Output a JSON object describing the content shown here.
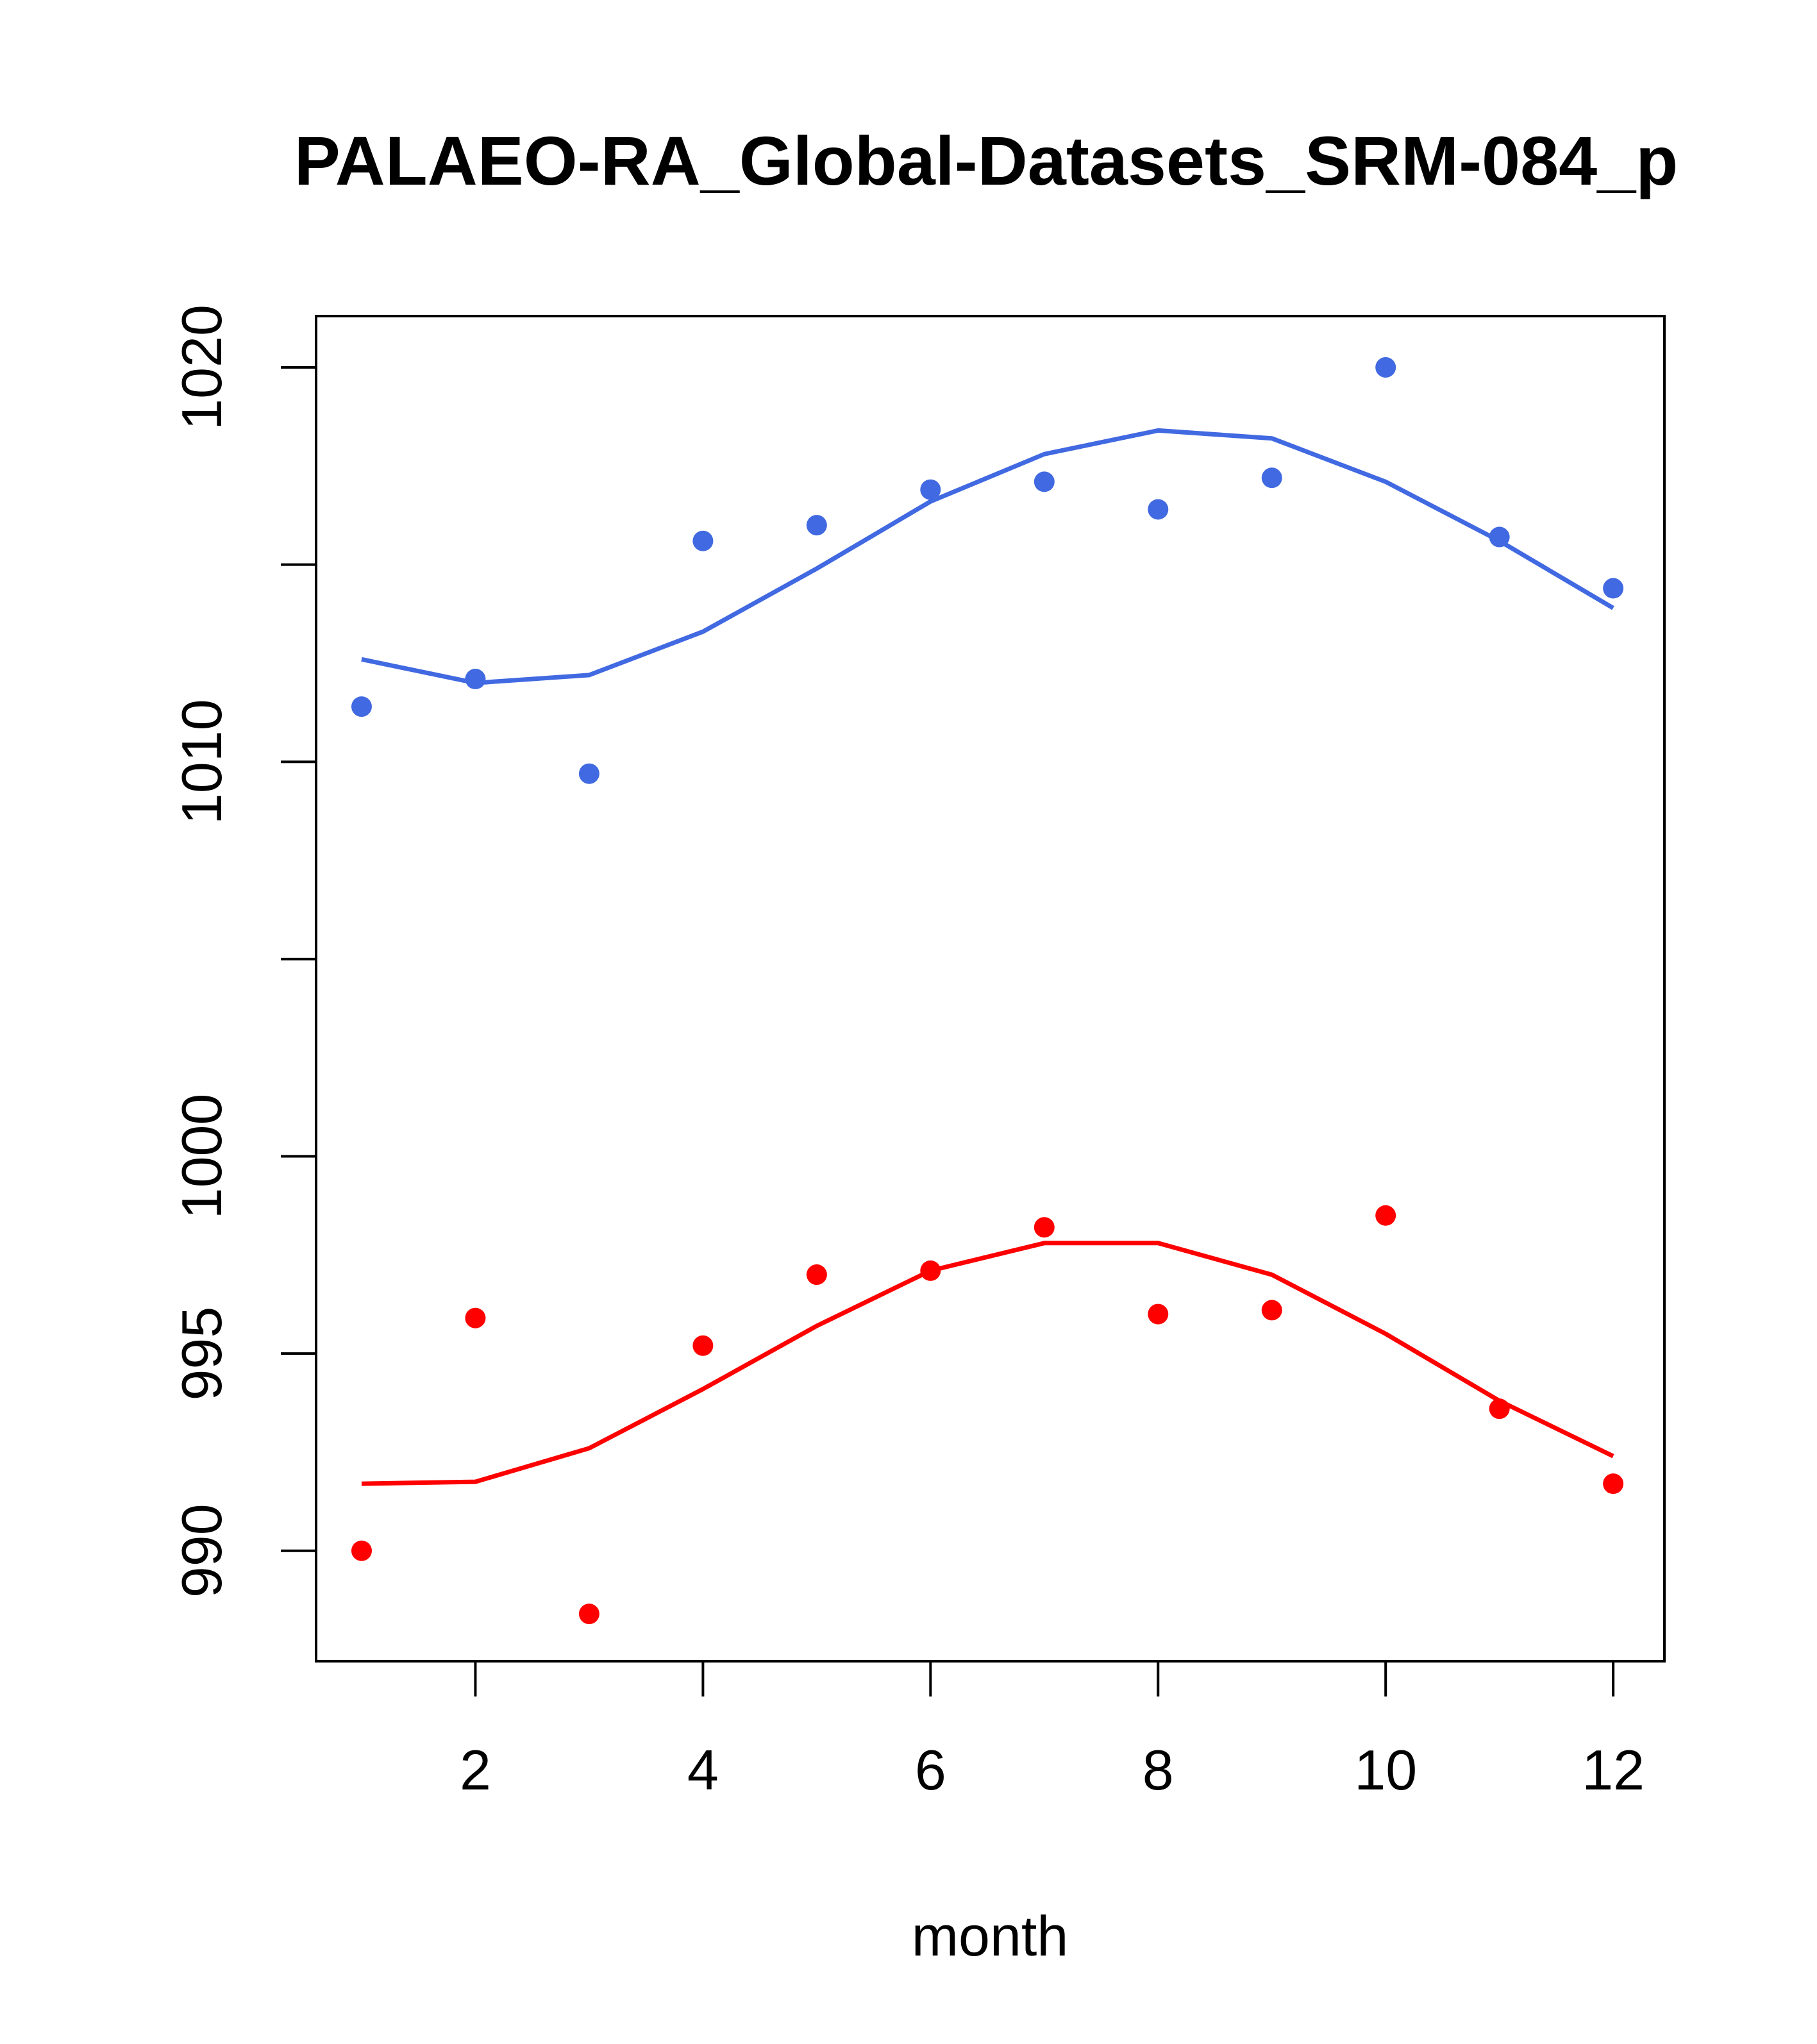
{
  "chart_data": {
    "type": "scatter",
    "title": "PALAEO-RA_Global-Datasets_SRM-084_p",
    "xlabel": "month",
    "ylabel": "",
    "xlim": [
      0.6,
      12.45
    ],
    "ylim": [
      987.2,
      1021.3
    ],
    "x_ticks": [
      2,
      4,
      6,
      8,
      10,
      12
    ],
    "y_ticks": [
      990,
      995,
      1000,
      1005,
      1010,
      1015,
      1020
    ],
    "y_tick_labels": [
      "990",
      "995",
      "1000",
      "",
      "1010",
      "",
      "1020"
    ],
    "x": [
      1,
      2,
      3,
      4,
      5,
      6,
      7,
      8,
      9,
      10,
      11,
      12
    ],
    "series": [
      {
        "name": "points-blue",
        "kind": "points",
        "color": "#4169E1",
        "values": [
          1011.4,
          1012.1,
          1009.7,
          1015.6,
          1016.0,
          1016.9,
          1017.1,
          1016.4,
          1017.2,
          1020.0,
          1015.7,
          1014.4
        ]
      },
      {
        "name": "smooth-blue",
        "kind": "line",
        "color": "#4169E1",
        "values": [
          1012.6,
          1012.0,
          1012.2,
          1013.3,
          1014.9,
          1016.6,
          1017.8,
          1018.4,
          1018.2,
          1017.1,
          1015.6,
          1013.9
        ]
      },
      {
        "name": "points-red",
        "kind": "points",
        "color": "#FF0000",
        "values": [
          990.0,
          995.9,
          988.4,
          995.2,
          997.0,
          997.1,
          998.2,
          996.0,
          996.1,
          998.5,
          993.6,
          991.7
        ]
      },
      {
        "name": "smooth-red",
        "kind": "line",
        "color": "#FF0000",
        "values": [
          991.7,
          991.75,
          992.6,
          994.1,
          995.7,
          997.1,
          997.8,
          997.8,
          997.0,
          995.5,
          993.8,
          992.4
        ]
      }
    ]
  }
}
